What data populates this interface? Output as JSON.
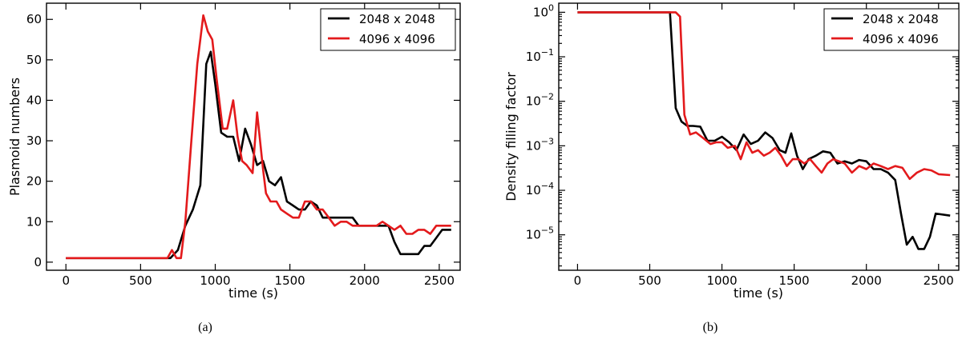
{
  "colors": {
    "black_series": "#000000",
    "red_series": "#e31a1c"
  },
  "chart_data": [
    {
      "type": "line",
      "panel_label": "(a)",
      "xlabel": "time (s)",
      "ylabel": "Plasmoid numbers",
      "xlim": [
        -130,
        2640
      ],
      "ylim": [
        -2,
        64
      ],
      "xticks": [
        0,
        500,
        1000,
        1500,
        2000,
        2500
      ],
      "yticks": [
        0,
        10,
        20,
        30,
        40,
        50,
        60
      ],
      "yscale": "linear",
      "legend_position": "top-right",
      "series": [
        {
          "name": "2048 x 2048",
          "color": "#000000",
          "x": [
            0,
            650,
            700,
            750,
            800,
            850,
            900,
            940,
            970,
            1000,
            1040,
            1080,
            1120,
            1160,
            1200,
            1240,
            1280,
            1320,
            1360,
            1400,
            1440,
            1480,
            1520,
            1560,
            1600,
            1640,
            1680,
            1720,
            1760,
            1800,
            1840,
            1880,
            1920,
            1960,
            2000,
            2080,
            2160,
            2200,
            2240,
            2280,
            2320,
            2360,
            2400,
            2440,
            2480,
            2520,
            2580
          ],
          "values": [
            1,
            1,
            1,
            3,
            9,
            13,
            19,
            49,
            52,
            44,
            32,
            31,
            31,
            25,
            33,
            29,
            24,
            25,
            20,
            19,
            21,
            15,
            14,
            13,
            13,
            15,
            14,
            11,
            11,
            11,
            11,
            11,
            11,
            9,
            9,
            9,
            9,
            5,
            2,
            2,
            2,
            2,
            4,
            4,
            6,
            8,
            8
          ]
        },
        {
          "name": "4096 x 4096",
          "color": "#e31a1c",
          "x": [
            0,
            650,
            680,
            710,
            740,
            770,
            800,
            840,
            880,
            920,
            950,
            980,
            1010,
            1050,
            1080,
            1120,
            1150,
            1180,
            1210,
            1250,
            1280,
            1320,
            1340,
            1370,
            1410,
            1440,
            1480,
            1520,
            1560,
            1600,
            1640,
            1680,
            1720,
            1760,
            1800,
            1840,
            1880,
            1920,
            1960,
            2000,
            2040,
            2080,
            2120,
            2160,
            2200,
            2240,
            2280,
            2320,
            2360,
            2400,
            2440,
            2480,
            2520,
            2580
          ],
          "values": [
            1,
            1,
            1,
            3,
            1,
            1,
            10,
            30,
            49,
            61,
            57,
            55,
            45,
            33,
            33,
            40,
            31,
            25,
            24,
            22,
            37,
            23,
            17,
            15,
            15,
            13,
            12,
            11,
            11,
            15,
            15,
            13,
            13,
            11,
            9,
            10,
            10,
            9,
            9,
            9,
            9,
            9,
            10,
            9,
            8,
            9,
            7,
            7,
            8,
            8,
            7,
            9,
            9,
            9
          ]
        }
      ]
    },
    {
      "type": "line",
      "panel_label": "(b)",
      "xlabel": "time (s)",
      "ylabel": "Density filling factor",
      "xlim": [
        -130,
        2640
      ],
      "ylim": [
        1.6e-06,
        1.6
      ],
      "xticks": [
        0,
        500,
        1000,
        1500,
        2000,
        2500
      ],
      "ytick_exponents": [
        0,
        -1,
        -2,
        -3,
        -4,
        -5
      ],
      "yscale": "log",
      "legend_position": "top-right",
      "series": [
        {
          "name": "2048 x 2048",
          "color": "#000000",
          "x": [
            0,
            640,
            680,
            720,
            760,
            800,
            850,
            900,
            950,
            1000,
            1050,
            1100,
            1150,
            1200,
            1250,
            1300,
            1350,
            1400,
            1440,
            1480,
            1520,
            1560,
            1600,
            1650,
            1700,
            1750,
            1800,
            1850,
            1900,
            1950,
            2000,
            2050,
            2100,
            2150,
            2200,
            2240,
            2280,
            2320,
            2360,
            2400,
            2440,
            2480,
            2580
          ],
          "values": [
            1.0,
            1.0,
            0.007,
            0.0035,
            0.0028,
            0.0028,
            0.0027,
            0.0013,
            0.0013,
            0.0016,
            0.0012,
            0.0008,
            0.0018,
            0.0011,
            0.0013,
            0.002,
            0.0015,
            0.0008,
            0.0007,
            0.0019,
            0.0006,
            0.0003,
            0.0005,
            0.0006,
            0.00075,
            0.0007,
            0.0004,
            0.00045,
            0.0004,
            0.00048,
            0.00045,
            0.0003,
            0.0003,
            0.00025,
            0.00017,
            3e-05,
            6e-06,
            9e-06,
            4.8e-06,
            4.8e-06,
            9e-06,
            3e-05,
            2.7e-05
          ]
        },
        {
          "name": "4096 x 4096",
          "color": "#e31a1c",
          "x": [
            0,
            680,
            710,
            740,
            780,
            820,
            870,
            920,
            960,
            1000,
            1040,
            1090,
            1130,
            1170,
            1210,
            1250,
            1290,
            1330,
            1370,
            1410,
            1450,
            1490,
            1530,
            1570,
            1610,
            1650,
            1690,
            1730,
            1770,
            1810,
            1850,
            1900,
            1950,
            2000,
            2050,
            2100,
            2150,
            2200,
            2250,
            2300,
            2350,
            2400,
            2450,
            2500,
            2580
          ],
          "values": [
            1.0,
            1.0,
            0.8,
            0.005,
            0.0018,
            0.002,
            0.0015,
            0.0011,
            0.0012,
            0.0012,
            0.0009,
            0.001,
            0.0005,
            0.0012,
            0.0007,
            0.0008,
            0.0006,
            0.0007,
            0.0009,
            0.0006,
            0.00035,
            0.0005,
            0.0005,
            0.0004,
            0.0005,
            0.00035,
            0.00025,
            0.0004,
            0.0005,
            0.00045,
            0.0004,
            0.00025,
            0.00035,
            0.0003,
            0.0004,
            0.00035,
            0.0003,
            0.00035,
            0.00032,
            0.00018,
            0.00025,
            0.0003,
            0.00028,
            0.00023,
            0.00022
          ]
        }
      ]
    }
  ]
}
